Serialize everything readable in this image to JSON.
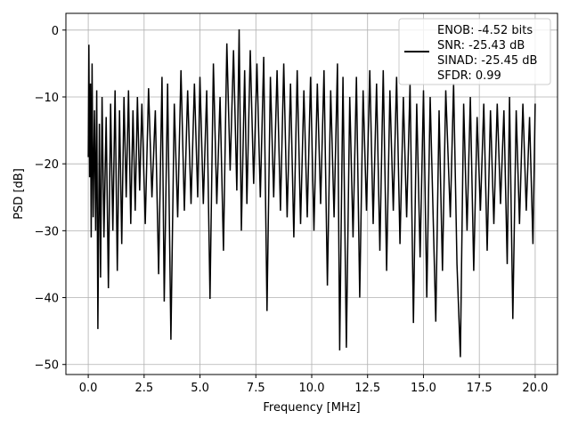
{
  "chart_data": {
    "type": "line",
    "xlabel": "Frequency [MHz]",
    "ylabel": "PSD [dB]",
    "xlim": [
      -1.0,
      21.0
    ],
    "ylim": [
      -51.5,
      2.5
    ],
    "x_ticks": [
      0.0,
      2.5,
      5.0,
      7.5,
      10.0,
      12.5,
      15.0,
      17.5,
      20.0
    ],
    "x_tick_labels": [
      "0.0",
      "2.5",
      "5.0",
      "7.5",
      "10.0",
      "12.5",
      "15.0",
      "17.5",
      "20.0"
    ],
    "y_ticks": [
      0,
      -10,
      -20,
      -30,
      -40,
      -50
    ],
    "y_tick_labels": [
      "0",
      "−10",
      "−20",
      "−30",
      "−40",
      "−50"
    ],
    "grid": true,
    "legend_position": "top-right",
    "series_color": "#000000",
    "legend_lines": [
      "ENOB: -4.52 bits",
      "SNR: -25.43 dB",
      "SINAD: -25.45 dB",
      "SFDR: 0.99"
    ],
    "series": [
      {
        "name": "ENOB: -4.52 bits SNR: -25.43 dB SINAD: -25.45 dB SFDR: 0.99",
        "points": [
          [
            0.0,
            -19.0
          ],
          [
            0.03,
            -2.2
          ],
          [
            0.06,
            -22.0
          ],
          [
            0.1,
            -8.0
          ],
          [
            0.13,
            -31.0
          ],
          [
            0.17,
            -5.0
          ],
          [
            0.22,
            -28.0
          ],
          [
            0.28,
            -12.0
          ],
          [
            0.33,
            -30.0
          ],
          [
            0.38,
            -9.0
          ],
          [
            0.43,
            -44.7
          ],
          [
            0.5,
            -14.0
          ],
          [
            0.55,
            -37.0
          ],
          [
            0.62,
            -10.0
          ],
          [
            0.7,
            -31.0
          ],
          [
            0.8,
            -13.0
          ],
          [
            0.9,
            -38.6
          ],
          [
            1.0,
            -11.0
          ],
          [
            1.1,
            -30.0
          ],
          [
            1.2,
            -9.0
          ],
          [
            1.3,
            -36.0
          ],
          [
            1.4,
            -12.0
          ],
          [
            1.5,
            -32.0
          ],
          [
            1.6,
            -10.0
          ],
          [
            1.7,
            -25.0
          ],
          [
            1.8,
            -9.0
          ],
          [
            1.9,
            -29.0
          ],
          [
            2.0,
            -12.0
          ],
          [
            2.1,
            -27.0
          ],
          [
            2.2,
            -10.0
          ],
          [
            2.3,
            -24.0
          ],
          [
            2.4,
            -11.0
          ],
          [
            2.55,
            -29.0
          ],
          [
            2.7,
            -8.7
          ],
          [
            2.85,
            -25.0
          ],
          [
            3.0,
            -12.0
          ],
          [
            3.15,
            -36.5
          ],
          [
            3.3,
            -7.0
          ],
          [
            3.4,
            -40.6
          ],
          [
            3.55,
            -8.0
          ],
          [
            3.7,
            -46.3
          ],
          [
            3.85,
            -11.0
          ],
          [
            4.0,
            -28.0
          ],
          [
            4.15,
            -6.0
          ],
          [
            4.3,
            -27.0
          ],
          [
            4.45,
            -9.0
          ],
          [
            4.6,
            -26.0
          ],
          [
            4.75,
            -8.0
          ],
          [
            4.9,
            -25.0
          ],
          [
            5.0,
            -7.0
          ],
          [
            5.15,
            -26.0
          ],
          [
            5.3,
            -9.0
          ],
          [
            5.45,
            -40.2
          ],
          [
            5.6,
            -5.0
          ],
          [
            5.75,
            -26.0
          ],
          [
            5.9,
            -10.0
          ],
          [
            6.05,
            -33.0
          ],
          [
            6.2,
            -2.0
          ],
          [
            6.35,
            -21.0
          ],
          [
            6.5,
            -3.0
          ],
          [
            6.65,
            -24.0
          ],
          [
            6.75,
            0.1
          ],
          [
            6.85,
            -30.0
          ],
          [
            7.0,
            -6.0
          ],
          [
            7.1,
            -26.0
          ],
          [
            7.25,
            -3.0
          ],
          [
            7.4,
            -23.0
          ],
          [
            7.55,
            -5.0
          ],
          [
            7.7,
            -25.0
          ],
          [
            7.85,
            -4.0
          ],
          [
            8.0,
            -42.0
          ],
          [
            8.15,
            -7.0
          ],
          [
            8.3,
            -25.0
          ],
          [
            8.45,
            -6.0
          ],
          [
            8.6,
            -27.0
          ],
          [
            8.75,
            -5.0
          ],
          [
            8.9,
            -28.0
          ],
          [
            9.05,
            -8.0
          ],
          [
            9.2,
            -31.0
          ],
          [
            9.35,
            -6.0
          ],
          [
            9.5,
            -29.0
          ],
          [
            9.65,
            -9.0
          ],
          [
            9.8,
            -28.0
          ],
          [
            9.95,
            -7.0
          ],
          [
            10.1,
            -30.0
          ],
          [
            10.25,
            -8.0
          ],
          [
            10.4,
            -26.0
          ],
          [
            10.55,
            -6.0
          ],
          [
            10.7,
            -38.2
          ],
          [
            10.85,
            -9.0
          ],
          [
            11.0,
            -28.0
          ],
          [
            11.15,
            -5.0
          ],
          [
            11.25,
            -47.9
          ],
          [
            11.4,
            -7.0
          ],
          [
            11.55,
            -47.5
          ],
          [
            11.7,
            -10.0
          ],
          [
            11.85,
            -31.0
          ],
          [
            12.0,
            -7.0
          ],
          [
            12.15,
            -40.0
          ],
          [
            12.3,
            -9.0
          ],
          [
            12.45,
            -27.0
          ],
          [
            12.6,
            -6.0
          ],
          [
            12.75,
            -29.0
          ],
          [
            12.9,
            -8.0
          ],
          [
            13.05,
            -33.0
          ],
          [
            13.2,
            -6.0
          ],
          [
            13.35,
            -36.0
          ],
          [
            13.5,
            -9.0
          ],
          [
            13.65,
            -27.0
          ],
          [
            13.8,
            -7.0
          ],
          [
            13.95,
            -32.0
          ],
          [
            14.1,
            -10.0
          ],
          [
            14.25,
            -28.0
          ],
          [
            14.4,
            -8.0
          ],
          [
            14.55,
            -43.8
          ],
          [
            14.7,
            -11.0
          ],
          [
            14.85,
            -34.0
          ],
          [
            15.0,
            -9.0
          ],
          [
            15.15,
            -40.0
          ],
          [
            15.3,
            -10.0
          ],
          [
            15.55,
            -43.6
          ],
          [
            15.7,
            -12.0
          ],
          [
            15.85,
            -36.0
          ],
          [
            16.0,
            -9.0
          ],
          [
            16.2,
            -28.0
          ],
          [
            16.35,
            -8.0
          ],
          [
            16.5,
            -35.0
          ],
          [
            16.65,
            -48.9
          ],
          [
            16.8,
            -11.0
          ],
          [
            16.95,
            -30.0
          ],
          [
            17.1,
            -10.0
          ],
          [
            17.25,
            -36.0
          ],
          [
            17.4,
            -13.0
          ],
          [
            17.55,
            -27.0
          ],
          [
            17.7,
            -11.0
          ],
          [
            17.85,
            -33.0
          ],
          [
            18.0,
            -12.0
          ],
          [
            18.15,
            -29.0
          ],
          [
            18.3,
            -11.0
          ],
          [
            18.45,
            -26.0
          ],
          [
            18.6,
            -12.0
          ],
          [
            18.75,
            -35.0
          ],
          [
            18.85,
            -10.0
          ],
          [
            19.0,
            -43.2
          ],
          [
            19.15,
            -12.0
          ],
          [
            19.3,
            -29.0
          ],
          [
            19.45,
            -11.0
          ],
          [
            19.6,
            -27.0
          ],
          [
            19.75,
            -13.0
          ],
          [
            19.9,
            -32.0
          ],
          [
            20.0,
            -11.0
          ]
        ]
      }
    ]
  }
}
